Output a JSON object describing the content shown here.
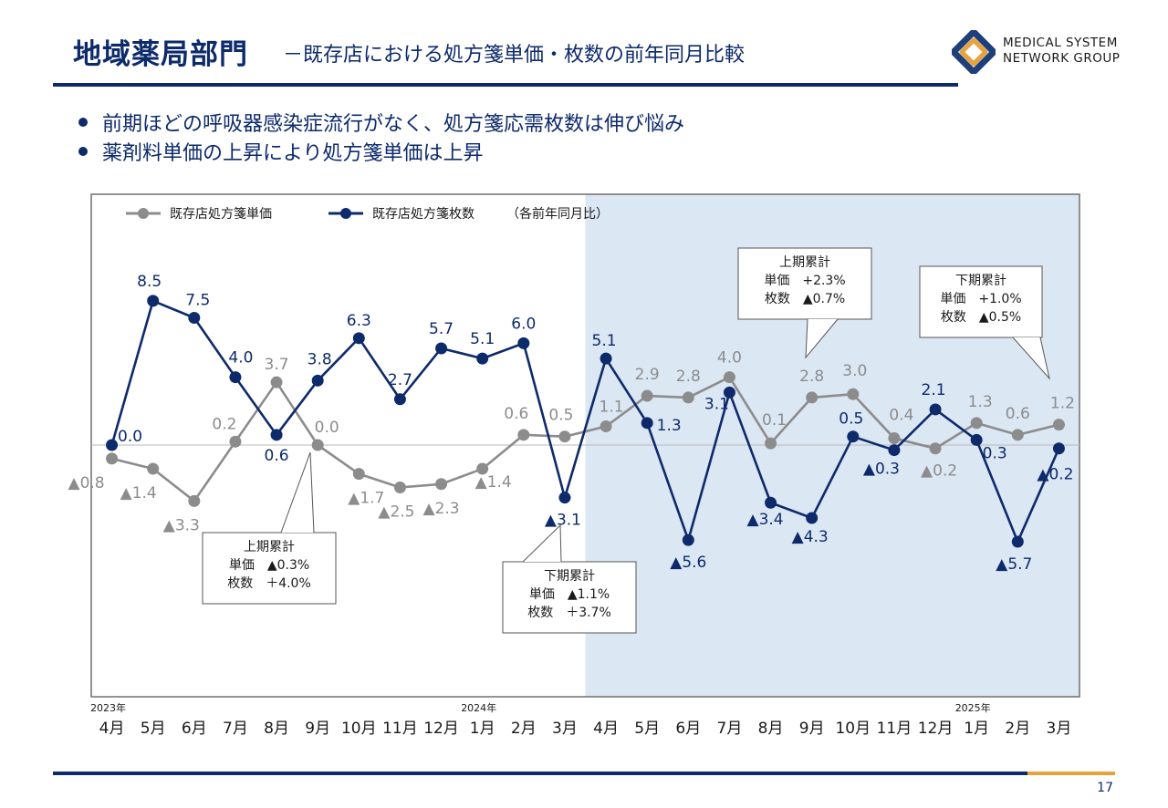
{
  "header": {
    "title": "地域薬局部門",
    "subtitle": "－既存店における処方箋単価・枚数の前年同月比較",
    "logo_line1": "MEDICAL SYSTEM",
    "logo_line2": "NETWORK GROUP",
    "logo_colors": {
      "outer": "#1f3f7a",
      "inner": "#e6a23c"
    }
  },
  "bullets": [
    "前期ほどの呼吸器感染症流行がなく、処方箋応需枚数は伸び悩み",
    "薬剤料単価の上昇により処方箋単価は上昇"
  ],
  "footer": {
    "page_number": "17"
  },
  "colors": {
    "navy": "#0d2a6b",
    "gray": "#8c8c8c",
    "shade": "#dce7f4",
    "accent": "#e6a23c"
  },
  "chart_data": {
    "type": "line",
    "legend_note": "（各前年同月比）",
    "categories": [
      "4月",
      "5月",
      "6月",
      "7月",
      "8月",
      "9月",
      "10月",
      "11月",
      "12月",
      "1月",
      "2月",
      "3月",
      "4月",
      "5月",
      "6月",
      "7月",
      "8月",
      "9月",
      "10月",
      "11月",
      "12月",
      "1月",
      "2月",
      "3月"
    ],
    "year_labels": [
      {
        "index": 0,
        "label": "2023年"
      },
      {
        "index": 9,
        "label": "2024年"
      },
      {
        "index": 21,
        "label": "2025年"
      }
    ],
    "shaded_range": {
      "start_index": 12,
      "end_index": 23
    },
    "series": [
      {
        "name": "既存店処方箋単価",
        "color": "#8c8c8c",
        "values": [
          -0.8,
          -1.4,
          -3.3,
          0.2,
          3.7,
          0.0,
          -1.7,
          -2.5,
          -2.3,
          -1.4,
          0.6,
          0.5,
          1.1,
          2.9,
          2.8,
          4.0,
          0.1,
          2.8,
          3.0,
          0.4,
          -0.2,
          1.3,
          0.6,
          1.2
        ],
        "labels": [
          "▲0.8",
          "▲1.4",
          "▲3.3",
          "0.2",
          "3.7",
          "0.0",
          "▲1.7",
          "▲2.5",
          "▲2.3",
          "▲1.4",
          "0.6",
          "0.5",
          "1.1",
          "2.9",
          "2.8",
          "4.0",
          "0.1",
          "2.8",
          "3.0",
          "0.4",
          "▲0.2",
          "1.3",
          "0.6",
          "1.2"
        ]
      },
      {
        "name": "既存店処方箋枚数",
        "color": "#0d2a6b",
        "values": [
          0.0,
          8.5,
          7.5,
          4.0,
          0.6,
          3.8,
          6.3,
          2.7,
          5.7,
          5.1,
          6.0,
          -3.1,
          5.1,
          1.3,
          -5.6,
          3.1,
          -3.4,
          -4.3,
          0.5,
          -0.3,
          2.1,
          0.3,
          -5.7,
          -0.2
        ],
        "labels": [
          "0.0",
          "8.5",
          "7.5",
          "4.0",
          "0.6",
          "3.8",
          "6.3",
          "2.7",
          "5.7",
          "5.1",
          "6.0",
          "▲3.1",
          "5.1",
          "1.3",
          "▲5.6",
          "3.1",
          "▲3.4",
          "▲4.3",
          "0.5",
          "▲0.3",
          "2.1",
          "0.3",
          "▲5.7",
          "▲0.2"
        ]
      }
    ],
    "callouts": [
      {
        "title": "上期累計",
        "line1": "単価　▲0.3%",
        "line2": "枚数　＋4.0%"
      },
      {
        "title": "下期累計",
        "line1": "単価　▲1.1%",
        "line2": "枚数　＋3.7%"
      },
      {
        "title": "上期累計",
        "line1": "単価　+2.3%",
        "line2": "枚数　▲0.7%"
      },
      {
        "title": "下期累計",
        "line1": "単価　+1.0%",
        "line2": "枚数　▲0.5%"
      }
    ]
  }
}
